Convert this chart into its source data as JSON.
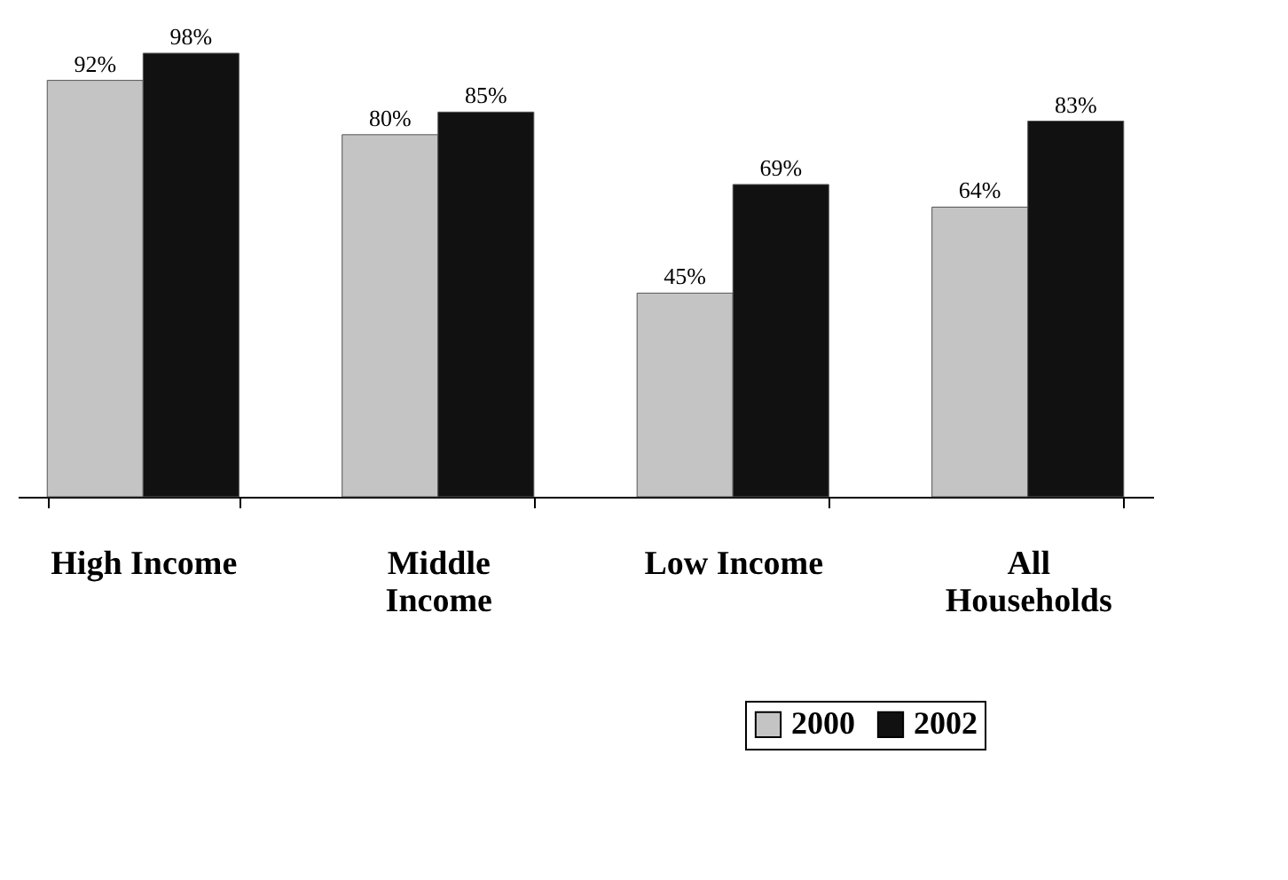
{
  "chart_data": {
    "type": "bar",
    "categories": [
      "High Income",
      "Middle\nIncome",
      "Low Income",
      "All\nHouseholds"
    ],
    "series": [
      {
        "name": "2000",
        "color": "#c4c4c4",
        "values": [
          92,
          80,
          45,
          64
        ],
        "value_labels": [
          "92%",
          "80%",
          "45%",
          "64%"
        ]
      },
      {
        "name": "2002",
        "color": "#111111",
        "values": [
          98,
          85,
          69,
          83
        ],
        "value_labels": [
          "98%",
          "85%",
          "69%",
          "83%"
        ]
      }
    ],
    "legend": "bottom right",
    "grid": false
  }
}
